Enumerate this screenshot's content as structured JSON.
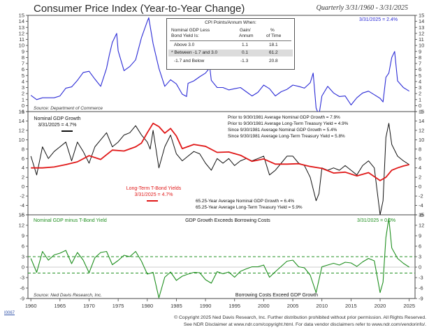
{
  "header": {
    "title": "Consumer Price Index (Year-to-Year Change)",
    "period": "Quarterly 3/31/1960 - 3/31/2025"
  },
  "cpi_table": {
    "title": "CPI Points/Annum When:",
    "col1_header_line1": "Nominal GDP Less",
    "col1_header_line2": "Bond Yield Is:",
    "col2_header_line1": "Gain/",
    "col2_header_line2": "Annum",
    "col3_header_line1": "%",
    "col3_header_line2": "of Time",
    "rows": [
      {
        "label": "Above 3.0",
        "gain": "1.1",
        "pct": "18.1"
      },
      {
        "label": "* Between -1.7 and 3.0",
        "gain": "0.1",
        "pct": "61.2"
      },
      {
        "label": "-1.7 and Below",
        "gain": "-1.3",
        "pct": "20.8"
      }
    ]
  },
  "footer": {
    "copyright": "© Copyright 2025 Ned Davis Research, Inc.  Further distribution prohibited without prior permission.  All Rights Reserved.",
    "disclaimer": "See NDR Disclaimer at www.ndr.com/copyright.html.  For data vendor disclaimers refer to www.ndr.com/vendorinfo/.",
    "chart_id": "I0067"
  },
  "colors": {
    "cpi_line": "#2b2bd6",
    "gdp_line": "#111111",
    "bond_line": "#e01818",
    "spread_line": "#1f8f1f",
    "panel_border": "#444444"
  },
  "chart_data": [
    {
      "type": "line",
      "title": "Consumer Price Index (Year-to-Year Change)",
      "ylim": [
        -1,
        15
      ],
      "yticks": [
        -1,
        0,
        1,
        2,
        3,
        4,
        5,
        6,
        7,
        8,
        9,
        10,
        11,
        12,
        13,
        14,
        15
      ],
      "latest_label": "3/31/2025 = 2.4%",
      "source": "Source: Department of Commerce",
      "series": [
        {
          "name": "CPI Year-to-Year Change",
          "x": [
            1960,
            1961,
            1962,
            1963,
            1964,
            1965,
            1966,
            1967,
            1968,
            1969,
            1970,
            1971,
            1972,
            1973,
            1973.5,
            1974,
            1974.75,
            1975,
            1976,
            1977,
            1978,
            1979,
            1980,
            1980.25,
            1981,
            1982,
            1983,
            1984,
            1985,
            1986,
            1986.75,
            1987,
            1988,
            1989,
            1990,
            1990.75,
            1991,
            1992,
            1993,
            1994,
            1995,
            1996,
            1997,
            1998,
            1999,
            2000,
            2001,
            2002,
            2003,
            2004,
            2005,
            2006,
            2007,
            2008,
            2008.5,
            2009,
            2009.5,
            2010,
            2011,
            2012,
            2013,
            2014,
            2015,
            2016,
            2017,
            2018,
            2019,
            2020,
            2020.5,
            2021,
            2021.5,
            2022,
            2022.5,
            2023,
            2024,
            2025
          ],
          "values": [
            1.7,
            1.0,
            1.3,
            1.3,
            1.3,
            1.6,
            2.9,
            3.1,
            4.2,
            5.5,
            5.7,
            4.4,
            3.2,
            6.2,
            8.5,
            10.5,
            12.0,
            9.1,
            5.8,
            6.5,
            7.6,
            11.3,
            14.0,
            14.6,
            10.3,
            6.2,
            3.2,
            4.3,
            3.6,
            1.9,
            1.5,
            3.7,
            4.1,
            4.8,
            5.4,
            6.3,
            4.2,
            3.0,
            3.0,
            2.6,
            2.8,
            3.0,
            2.3,
            1.6,
            2.2,
            3.4,
            2.8,
            1.6,
            2.3,
            2.7,
            3.4,
            3.2,
            2.9,
            3.8,
            5.4,
            -0.4,
            -1.6,
            1.6,
            3.2,
            2.1,
            1.5,
            1.6,
            0.1,
            1.3,
            2.1,
            2.4,
            1.8,
            1.2,
            0.6,
            4.7,
            5.4,
            8.0,
            9.0,
            4.1,
            3.0,
            2.4
          ]
        }
      ],
      "table": "cpi_table"
    },
    {
      "type": "line",
      "ylim": [
        -6,
        16
      ],
      "yticks": [
        -6,
        -4,
        -2,
        0,
        2,
        4,
        6,
        8,
        10,
        12,
        14,
        16
      ],
      "series": [
        {
          "name": "Nominal GDP Growth",
          "label_line1": "Nominal GDP Growth",
          "label_line2": "3/31/2025 = 4.7%",
          "x": [
            1960,
            1961,
            1962,
            1963,
            1964,
            1965,
            1966,
            1967,
            1968,
            1969,
            1970,
            1971,
            1972,
            1973,
            1974,
            1975,
            1976,
            1977,
            1978,
            1979,
            1980,
            1980.5,
            1981,
            1982,
            1983,
            1984,
            1985,
            1986,
            1987,
            1988,
            1989,
            1990,
            1991,
            1992,
            1993,
            1994,
            1995,
            1996,
            1997,
            1998,
            1999,
            2000,
            2001,
            2002,
            2003,
            2004,
            2005,
            2006,
            2007,
            2008,
            2009,
            2009.5,
            2010,
            2011,
            2012,
            2013,
            2014,
            2015,
            2016,
            2017,
            2018,
            2019,
            2020,
            2020.5,
            2021,
            2021.5,
            2022,
            2023,
            2024,
            2025
          ],
          "values": [
            6.5,
            2.5,
            8.5,
            6.0,
            7.5,
            8.5,
            9.5,
            5.5,
            9.5,
            7.5,
            5.0,
            8.5,
            10.0,
            11.5,
            8.5,
            9.5,
            11.0,
            11.5,
            13.0,
            11.0,
            9.5,
            8.0,
            12.0,
            4.0,
            8.5,
            11.0,
            7.0,
            5.5,
            6.5,
            7.5,
            7.0,
            5.0,
            3.5,
            6.0,
            5.0,
            6.0,
            4.5,
            5.5,
            6.0,
            5.5,
            6.0,
            6.5,
            2.5,
            3.5,
            5.0,
            6.5,
            6.5,
            5.0,
            4.5,
            2.0,
            -3.0,
            -1.5,
            4.0,
            3.5,
            4.0,
            3.5,
            4.5,
            3.5,
            2.5,
            4.5,
            5.5,
            4.0,
            -6.0,
            -3.0,
            10.5,
            13.5,
            9.0,
            6.5,
            5.5,
            4.7
          ]
        },
        {
          "name": "Long-Term T-Bond Yields",
          "label_line1": "Long-Term T-Bond Yields",
          "label_line2": "3/31/2025 = 4.7%",
          "x": [
            1960,
            1962,
            1964,
            1966,
            1968,
            1970,
            1972,
            1974,
            1976,
            1978,
            1979,
            1980,
            1981,
            1982,
            1983,
            1984,
            1985,
            1986,
            1988,
            1990,
            1992,
            1994,
            1996,
            1998,
            2000,
            2002,
            2004,
            2006,
            2008,
            2010,
            2012,
            2014,
            2016,
            2018,
            2020,
            2021,
            2022,
            2023,
            2024,
            2025
          ],
          "values": [
            4.0,
            4.0,
            4.2,
            4.7,
            5.3,
            6.6,
            5.8,
            7.8,
            7.6,
            8.5,
            9.3,
            11.5,
            13.5,
            12.8,
            11.4,
            12.4,
            10.8,
            8.1,
            9.0,
            8.6,
            7.3,
            7.4,
            6.7,
            5.4,
            5.9,
            4.8,
            4.8,
            4.9,
            4.3,
            3.9,
            2.9,
            3.1,
            2.3,
            3.0,
            1.3,
            2.0,
            3.5,
            4.0,
            4.4,
            4.7
          ]
        }
      ],
      "notes": [
        "Prior to 9/30/1981 Average Nominal GDP Growth = 7.9%",
        "Prior to 9/30/1981 Average Long-Term Treasury Yield = 4.9%",
        "Since 9/30/1981 Average Nominal GDP Growth = 5.4%",
        "Since 9/30/1981 Average Long-Term Treasury Yield = 5.8%"
      ],
      "averages": [
        "65.25-Year Average Nominal GDP Growth = 6.4%",
        "65.25-Year Average Long-Term Treasury Yield = 5.9%"
      ]
    },
    {
      "type": "line",
      "title": "Nominal GDP minus T-Bond Yield",
      "ylim": [
        -9,
        15
      ],
      "yticks": [
        -9,
        -6,
        -3,
        0,
        3,
        6,
        9,
        12,
        15
      ],
      "reference_lines": [
        3.0,
        -1.7
      ],
      "upper_label": "GDP Growth Exceeds Borrowing Costs",
      "lower_label": "Borrowing Costs Exceed GDP Growth",
      "latest_label": "3/31/2025 = 0.0%",
      "source": "Source: Ned Davis Research, Inc.",
      "series": [
        {
          "name": "Nominal GDP minus T-Bond Yield",
          "x": [
            1960,
            1961,
            1962,
            1963,
            1964,
            1965,
            1966,
            1967,
            1968,
            1969,
            1970,
            1971,
            1972,
            1973,
            1974,
            1975,
            1976,
            1977,
            1978,
            1979,
            1980,
            1981,
            1982,
            1983,
            1984,
            1985,
            1986,
            1987,
            1988,
            1989,
            1990,
            1991,
            1992,
            1993,
            1994,
            1995,
            1996,
            1997,
            1998,
            1999,
            2000,
            2001,
            2002,
            2003,
            2004,
            2005,
            2006,
            2007,
            2008,
            2009,
            2010,
            2011,
            2012,
            2013,
            2014,
            2015,
            2016,
            2017,
            2018,
            2019,
            2020,
            2020.5,
            2021,
            2021.5,
            2022,
            2023,
            2024,
            2025
          ],
          "values": [
            2.5,
            -1.5,
            4.5,
            2.0,
            3.5,
            4.0,
            4.8,
            1.0,
            4.2,
            2.0,
            -1.6,
            2.7,
            4.2,
            4.5,
            0.7,
            1.9,
            3.4,
            3.0,
            4.5,
            1.7,
            -2.0,
            -1.5,
            -8.8,
            -2.9,
            -1.4,
            -3.8,
            -2.6,
            -2.0,
            -1.5,
            -1.6,
            -3.6,
            -4.6,
            -1.3,
            -1.9,
            -1.4,
            -2.9,
            -1.2,
            -0.5,
            0.1,
            0.1,
            0.6,
            -2.9,
            -1.3,
            0.2,
            1.7,
            2.0,
            0.1,
            -0.2,
            -2.3,
            -7.3,
            0.1,
            0.6,
            1.1,
            0.6,
            1.4,
            1.2,
            0.2,
            1.5,
            2.5,
            1.8,
            -7.3,
            -4.3,
            8.5,
            14.0,
            5.5,
            2.5,
            1.1,
            0.0
          ]
        }
      ]
    },
    {
      "type": "axis",
      "xlim": [
        1959.5,
        2026
      ],
      "xticks": [
        "1960",
        "1965",
        "1970",
        "1975",
        "1980",
        "1985",
        "1990",
        "1995",
        "2000",
        "2005",
        "2010",
        "2015",
        "2020",
        "2025"
      ]
    }
  ]
}
